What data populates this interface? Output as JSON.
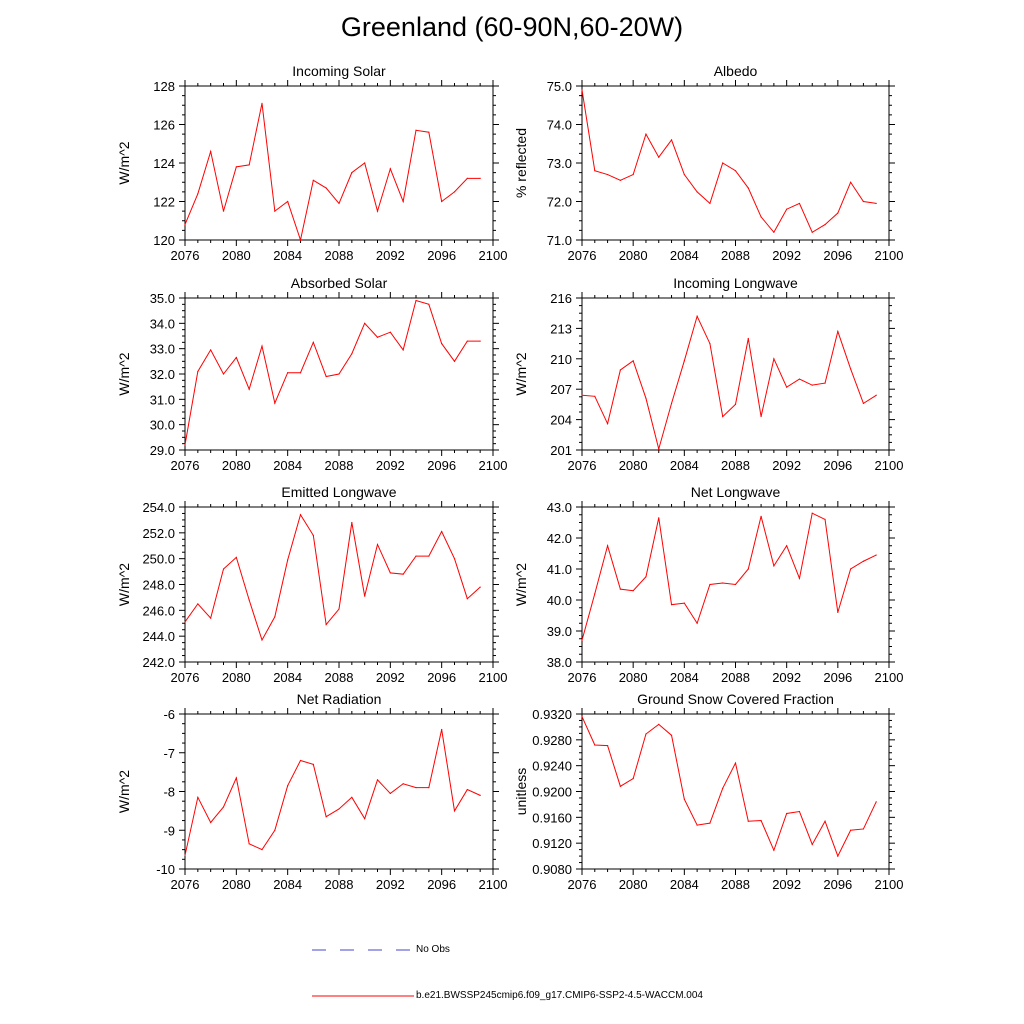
{
  "title": "Greenland (60-90N,60-20W)",
  "line_color": "#ff0000",
  "noobs_color": "#4444cc",
  "legend": {
    "no_obs": "No Obs",
    "model": "b.e21.BWSSP245cmip6.f09_g17.CMIP6-SSP2-4.5-WACCM.004"
  },
  "chart_data": [
    {
      "type": "line",
      "title": "Incoming Solar",
      "ylabel": "W/m^2",
      "xlim": [
        2076,
        2100
      ],
      "ylim": [
        120,
        128
      ],
      "xticks": [
        2076,
        2080,
        2084,
        2088,
        2092,
        2096,
        2100
      ],
      "yticks": [
        120,
        122,
        124,
        126,
        128
      ],
      "ytick_labels": [
        "120",
        "122",
        "124",
        "126",
        "128"
      ],
      "x": [
        2076,
        2077,
        2078,
        2079,
        2080,
        2081,
        2082,
        2083,
        2084,
        2085,
        2086,
        2087,
        2088,
        2089,
        2090,
        2091,
        2092,
        2093,
        2094,
        2095,
        2096,
        2097,
        2098,
        2099
      ],
      "values": [
        120.8,
        122.4,
        124.6,
        121.5,
        123.8,
        123.9,
        127.1,
        121.5,
        122.0,
        120.0,
        123.1,
        122.7,
        121.9,
        123.5,
        124.0,
        121.5,
        123.7,
        122.0,
        125.7,
        125.6,
        122.0,
        122.5,
        123.2,
        123.2
      ]
    },
    {
      "type": "line",
      "title": "Albedo",
      "ylabel": "% reflected",
      "xlim": [
        2076,
        2100
      ],
      "ylim": [
        71.0,
        75.0
      ],
      "xticks": [
        2076,
        2080,
        2084,
        2088,
        2092,
        2096,
        2100
      ],
      "yticks": [
        71.0,
        72.0,
        73.0,
        74.0,
        75.0
      ],
      "ytick_labels": [
        "71.0",
        "72.0",
        "73.0",
        "74.0",
        "75.0"
      ],
      "x": [
        2076,
        2077,
        2078,
        2079,
        2080,
        2081,
        2082,
        2083,
        2084,
        2085,
        2086,
        2087,
        2088,
        2089,
        2090,
        2091,
        2092,
        2093,
        2094,
        2095,
        2096,
        2097,
        2098,
        2099
      ],
      "values": [
        74.9,
        72.8,
        72.7,
        72.55,
        72.7,
        73.75,
        73.15,
        73.6,
        72.7,
        72.25,
        71.95,
        73.0,
        72.8,
        72.35,
        71.6,
        71.2,
        71.8,
        71.95,
        71.2,
        71.4,
        71.7,
        72.5,
        72.0,
        71.95
      ]
    },
    {
      "type": "line",
      "title": "Absorbed Solar",
      "ylabel": "W/m^2",
      "xlim": [
        2076,
        2100
      ],
      "ylim": [
        29.0,
        35.0
      ],
      "xticks": [
        2076,
        2080,
        2084,
        2088,
        2092,
        2096,
        2100
      ],
      "yticks": [
        29.0,
        30.0,
        31.0,
        32.0,
        33.0,
        34.0,
        35.0
      ],
      "ytick_labels": [
        "29.0",
        "30.0",
        "31.0",
        "32.0",
        "33.0",
        "34.0",
        "35.0"
      ],
      "x": [
        2076,
        2077,
        2078,
        2079,
        2080,
        2081,
        2082,
        2083,
        2084,
        2085,
        2086,
        2087,
        2088,
        2089,
        2090,
        2091,
        2092,
        2093,
        2094,
        2095,
        2096,
        2097,
        2098,
        2099
      ],
      "values": [
        29.2,
        32.1,
        32.95,
        32.0,
        32.65,
        31.4,
        33.1,
        30.85,
        32.05,
        32.05,
        33.25,
        31.9,
        32.0,
        32.8,
        34.0,
        33.45,
        33.65,
        32.95,
        34.9,
        34.75,
        33.2,
        32.5,
        33.3,
        33.3
      ]
    },
    {
      "type": "line",
      "title": "Incoming Longwave",
      "ylabel": "W/m^2",
      "xlim": [
        2076,
        2100
      ],
      "ylim": [
        201,
        216
      ],
      "xticks": [
        2076,
        2080,
        2084,
        2088,
        2092,
        2096,
        2100
      ],
      "yticks": [
        201,
        204,
        207,
        210,
        213,
        216
      ],
      "ytick_labels": [
        "201",
        "204",
        "207",
        "210",
        "213",
        "216"
      ],
      "x": [
        2076,
        2077,
        2078,
        2079,
        2080,
        2081,
        2082,
        2083,
        2084,
        2085,
        2086,
        2087,
        2088,
        2089,
        2090,
        2091,
        2092,
        2093,
        2094,
        2095,
        2096,
        2097,
        2098,
        2099
      ],
      "values": [
        206.4,
        206.3,
        203.6,
        208.9,
        209.8,
        206.1,
        201.1,
        205.6,
        209.8,
        214.2,
        211.5,
        204.3,
        205.5,
        212.0,
        204.3,
        210.0,
        207.2,
        208.0,
        207.4,
        207.6,
        212.7,
        209.0,
        205.6,
        206.4
      ]
    },
    {
      "type": "line",
      "title": "Emitted Longwave",
      "ylabel": "W/m^2",
      "xlim": [
        2076,
        2100
      ],
      "ylim": [
        242.0,
        254.0
      ],
      "xticks": [
        2076,
        2080,
        2084,
        2088,
        2092,
        2096,
        2100
      ],
      "yticks": [
        242.0,
        244.0,
        246.0,
        248.0,
        250.0,
        252.0,
        254.0
      ],
      "ytick_labels": [
        "242.0",
        "244.0",
        "246.0",
        "248.0",
        "250.0",
        "252.0",
        "254.0"
      ],
      "x": [
        2076,
        2077,
        2078,
        2079,
        2080,
        2081,
        2082,
        2083,
        2084,
        2085,
        2086,
        2087,
        2088,
        2089,
        2090,
        2091,
        2092,
        2093,
        2094,
        2095,
        2096,
        2097,
        2098,
        2099
      ],
      "values": [
        245.1,
        246.5,
        245.4,
        249.2,
        250.1,
        246.8,
        243.7,
        245.5,
        249.9,
        253.4,
        251.8,
        244.9,
        246.1,
        252.8,
        247.1,
        251.1,
        248.9,
        248.8,
        250.2,
        250.2,
        252.1,
        250.0,
        246.9,
        247.8
      ]
    },
    {
      "type": "line",
      "title": "Net Longwave",
      "ylabel": "W/m^2",
      "xlim": [
        2076,
        2100
      ],
      "ylim": [
        38.0,
        43.0
      ],
      "xticks": [
        2076,
        2080,
        2084,
        2088,
        2092,
        2096,
        2100
      ],
      "yticks": [
        38.0,
        39.0,
        40.0,
        41.0,
        42.0,
        43.0
      ],
      "ytick_labels": [
        "38.0",
        "39.0",
        "40.0",
        "41.0",
        "42.0",
        "43.0"
      ],
      "x": [
        2076,
        2077,
        2078,
        2079,
        2080,
        2081,
        2082,
        2083,
        2084,
        2085,
        2086,
        2087,
        2088,
        2089,
        2090,
        2091,
        2092,
        2093,
        2094,
        2095,
        2096,
        2097,
        2098,
        2099
      ],
      "values": [
        38.7,
        40.2,
        41.75,
        40.35,
        40.3,
        40.75,
        42.65,
        39.85,
        39.9,
        39.25,
        40.5,
        40.55,
        40.5,
        41.0,
        42.7,
        41.1,
        41.75,
        40.7,
        42.8,
        42.6,
        39.6,
        41.0,
        41.25,
        41.45
      ]
    },
    {
      "type": "line",
      "title": "Net Radiation",
      "ylabel": "W/m^2",
      "xlim": [
        2076,
        2100
      ],
      "ylim": [
        -10,
        -6
      ],
      "xticks": [
        2076,
        2080,
        2084,
        2088,
        2092,
        2096,
        2100
      ],
      "yticks": [
        -10,
        -9,
        -8,
        -7,
        -6
      ],
      "ytick_labels": [
        "-10",
        "-9",
        "-8",
        "-7",
        "-6"
      ],
      "x": [
        2076,
        2077,
        2078,
        2079,
        2080,
        2081,
        2082,
        2083,
        2084,
        2085,
        2086,
        2087,
        2088,
        2089,
        2090,
        2091,
        2092,
        2093,
        2094,
        2095,
        2096,
        2097,
        2098,
        2099
      ],
      "values": [
        -9.65,
        -8.15,
        -8.8,
        -8.4,
        -7.65,
        -9.35,
        -9.5,
        -9.0,
        -7.85,
        -7.2,
        -7.3,
        -8.65,
        -8.45,
        -8.15,
        -8.7,
        -7.7,
        -8.05,
        -7.8,
        -7.9,
        -7.9,
        -6.4,
        -8.5,
        -7.95,
        -8.1
      ]
    },
    {
      "type": "line",
      "title": "Ground Snow Covered Fraction",
      "ylabel": "unitless",
      "xlim": [
        2076,
        2100
      ],
      "ylim": [
        0.908,
        0.932
      ],
      "xticks": [
        2076,
        2080,
        2084,
        2088,
        2092,
        2096,
        2100
      ],
      "yticks": [
        0.908,
        0.912,
        0.916,
        0.92,
        0.924,
        0.928,
        0.932
      ],
      "ytick_labels": [
        "0.9080",
        "0.9120",
        "0.9160",
        "0.9200",
        "0.9240",
        "0.9280",
        "0.9320"
      ],
      "x": [
        2076,
        2077,
        2078,
        2079,
        2080,
        2081,
        2082,
        2083,
        2084,
        2085,
        2086,
        2087,
        2088,
        2089,
        2090,
        2091,
        2092,
        2093,
        2094,
        2095,
        2096,
        2097,
        2098,
        2099
      ],
      "values": [
        0.9316,
        0.9272,
        0.9271,
        0.9208,
        0.922,
        0.9289,
        0.9304,
        0.9287,
        0.9188,
        0.9148,
        0.9151,
        0.9205,
        0.9244,
        0.9154,
        0.9155,
        0.9109,
        0.9166,
        0.9169,
        0.9118,
        0.9154,
        0.91,
        0.914,
        0.9142,
        0.9184
      ]
    }
  ]
}
